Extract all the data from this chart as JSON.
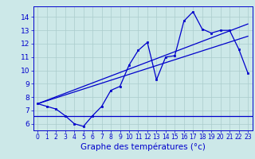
{
  "xlabel": "Graphe des températures (°c)",
  "hours": [
    0,
    1,
    2,
    3,
    4,
    5,
    6,
    7,
    8,
    9,
    10,
    11,
    12,
    13,
    14,
    15,
    16,
    17,
    18,
    19,
    20,
    21,
    22,
    23
  ],
  "temp_main": [
    7.5,
    7.3,
    7.1,
    6.6,
    6.0,
    5.8,
    6.6,
    7.3,
    8.5,
    8.8,
    10.4,
    11.5,
    12.1,
    9.3,
    11.0,
    11.1,
    13.7,
    14.4,
    13.1,
    12.8,
    13.0,
    13.0,
    11.6,
    9.8
  ],
  "temp_min_line": 6.55,
  "temp_trend1": [
    7.5,
    7.72,
    7.94,
    8.16,
    8.38,
    8.6,
    8.82,
    9.04,
    9.26,
    9.48,
    9.7,
    9.92,
    10.14,
    10.36,
    10.58,
    10.8,
    11.02,
    11.24,
    11.46,
    11.68,
    11.9,
    12.12,
    12.34,
    12.56
  ],
  "temp_trend2": [
    7.5,
    7.76,
    8.02,
    8.28,
    8.54,
    8.8,
    9.06,
    9.32,
    9.58,
    9.84,
    10.1,
    10.36,
    10.62,
    10.88,
    11.14,
    11.4,
    11.66,
    11.92,
    12.18,
    12.44,
    12.7,
    12.96,
    13.22,
    13.48
  ],
  "ylim": [
    5.5,
    14.8
  ],
  "xlim": [
    -0.5,
    23.5
  ],
  "yticks": [
    6,
    7,
    8,
    9,
    10,
    11,
    12,
    13,
    14
  ],
  "xticks": [
    0,
    1,
    2,
    3,
    4,
    5,
    6,
    7,
    8,
    9,
    10,
    11,
    12,
    13,
    14,
    15,
    16,
    17,
    18,
    19,
    20,
    21,
    22,
    23
  ],
  "line_color": "#0000cc",
  "bg_color": "#cce8e8",
  "grid_color": "#aacccc",
  "label_color": "#0000cc",
  "font_size": 6.5,
  "xlabel_fontsize": 7.5
}
